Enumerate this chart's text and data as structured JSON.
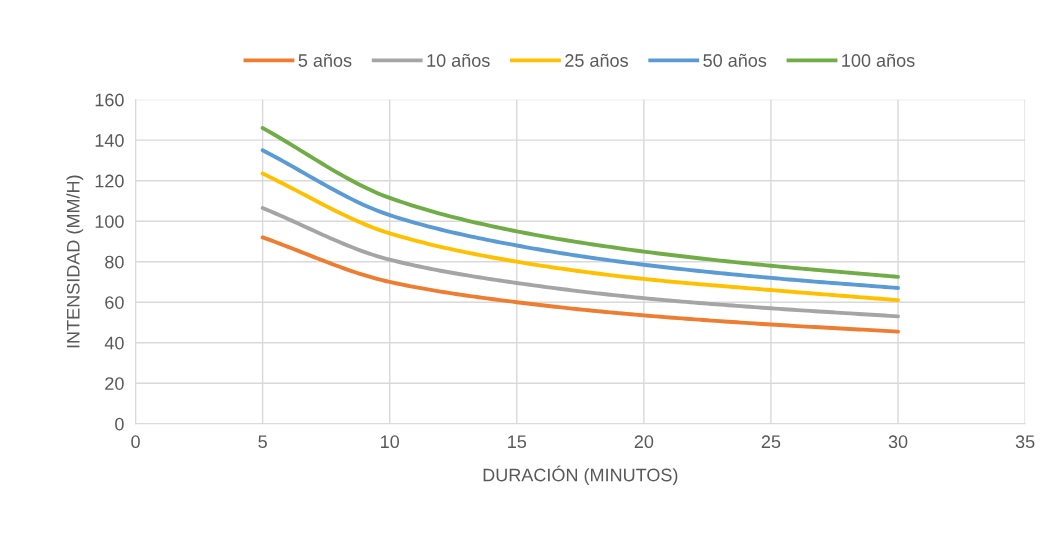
{
  "chart_data": {
    "type": "line",
    "xlabel": "DURACIÓN (MINUTOS)",
    "ylabel": "INTENSIDAD (MM/H)",
    "x": [
      5,
      10,
      15,
      20,
      25,
      30
    ],
    "xlim": [
      0,
      35
    ],
    "xticks": [
      0,
      5,
      10,
      15,
      20,
      25,
      30,
      35
    ],
    "ylim": [
      0,
      160
    ],
    "yticks": [
      0,
      20,
      40,
      60,
      80,
      100,
      120,
      140,
      160
    ],
    "grid": true,
    "legend": "top",
    "marker": "none",
    "line_style": "solid",
    "series": [
      {
        "name": "5 años",
        "color": "#ed7d31",
        "values": [
          92,
          70,
          60,
          53.5,
          49,
          45.5
        ]
      },
      {
        "name": "10 años",
        "color": "#a5a5a5",
        "values": [
          106.5,
          81,
          69.5,
          62,
          57,
          53
        ]
      },
      {
        "name": "25 años",
        "color": "#ffc000",
        "values": [
          123.5,
          94,
          80,
          71.5,
          66,
          61
        ]
      },
      {
        "name": "50 años",
        "color": "#5b9bd5",
        "values": [
          135,
          103,
          88,
          78.5,
          72,
          67
        ]
      },
      {
        "name": "100 años",
        "color": "#70ad47",
        "values": [
          146,
          111.5,
          95,
          85,
          78,
          72.5
        ]
      }
    ]
  }
}
